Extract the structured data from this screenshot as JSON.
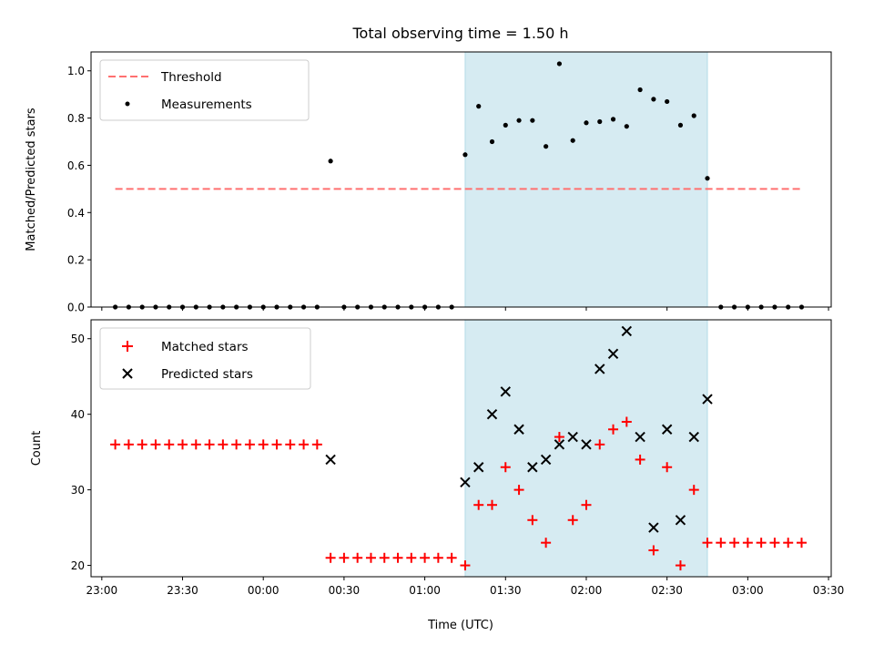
{
  "chart_data": {
    "title": "Total observing time = 1.50 h",
    "x_axis": {
      "label": "Time (UTC)",
      "ticks": [
        "23:00",
        "23:30",
        "00:00",
        "00:30",
        "01:00",
        "01:30",
        "02:00",
        "02:30",
        "03:00",
        "03:30"
      ],
      "range": [
        "22:56",
        "03:31"
      ]
    },
    "highlight_span": {
      "start": "01:15",
      "end": "02:45"
    },
    "x": [
      "23:05",
      "23:10",
      "23:15",
      "23:20",
      "23:25",
      "23:30",
      "23:35",
      "23:40",
      "23:45",
      "23:50",
      "23:55",
      "00:00",
      "00:05",
      "00:10",
      "00:15",
      "00:20",
      "00:25",
      "00:30",
      "00:35",
      "00:40",
      "00:45",
      "00:50",
      "00:55",
      "01:00",
      "01:05",
      "01:10",
      "01:15",
      "01:20",
      "01:25",
      "01:30",
      "01:35",
      "01:40",
      "01:45",
      "01:50",
      "01:55",
      "02:00",
      "02:05",
      "02:10",
      "02:15",
      "02:20",
      "02:25",
      "02:30",
      "02:35",
      "02:40",
      "02:45",
      "02:50",
      "02:55",
      "03:00",
      "03:05",
      "03:10",
      "03:15",
      "03:20"
    ],
    "panels": [
      {
        "type": "scatter",
        "ylabel": "Matched/Predicted stars",
        "ylim": [
          0,
          1.08
        ],
        "yticks": [
          "0.0",
          "0.2",
          "0.4",
          "0.6",
          "0.8",
          "1.0"
        ],
        "legend_position": "upper-left",
        "threshold": {
          "name": "Threshold",
          "value": 0.5,
          "x_start": "23:05",
          "x_end": "03:20",
          "color": "#ff7070",
          "style": "dashed"
        },
        "series": [
          {
            "name": "Measurements",
            "marker": "dot",
            "color": "#000000",
            "values": [
              0,
              0,
              0,
              0,
              0,
              0,
              0,
              0,
              0,
              0,
              0,
              0,
              0,
              0,
              0,
              0,
              0.618,
              0,
              0,
              0,
              0,
              0,
              0,
              0,
              0,
              0,
              0.645,
              0.85,
              0.7,
              0.77,
              0.79,
              0.79,
              0.68,
              1.03,
              0.705,
              0.78,
              0.785,
              0.795,
              0.765,
              0.92,
              0.88,
              0.87,
              0.77,
              0.81,
              0.545,
              0,
              0,
              0,
              0,
              0,
              0,
              0
            ]
          }
        ]
      },
      {
        "type": "scatter",
        "ylabel": "Count",
        "ylim": [
          18.5,
          52.5
        ],
        "yticks": [
          "20",
          "30",
          "40",
          "50"
        ],
        "legend_position": "upper-left",
        "series": [
          {
            "name": "Matched stars",
            "marker": "plus",
            "color": "#ff0000",
            "values": [
              36,
              36,
              36,
              36,
              36,
              36,
              36,
              36,
              36,
              36,
              36,
              36,
              36,
              36,
              36,
              36,
              21,
              21,
              21,
              21,
              21,
              21,
              21,
              21,
              21,
              21,
              20,
              28,
              28,
              33,
              30,
              26,
              23,
              37,
              26,
              28,
              36,
              38,
              39,
              34,
              22,
              33,
              20,
              30,
              23,
              23,
              23,
              23,
              23,
              23,
              23,
              23
            ]
          },
          {
            "name": "Predicted stars",
            "marker": "x",
            "color": "#000000",
            "values": [
              null,
              null,
              null,
              null,
              null,
              null,
              null,
              null,
              null,
              null,
              null,
              null,
              null,
              null,
              null,
              null,
              34,
              null,
              null,
              null,
              null,
              null,
              null,
              null,
              null,
              null,
              31,
              33,
              40,
              43,
              38,
              33,
              34,
              36,
              37,
              36,
              46,
              48,
              51,
              37,
              25,
              38,
              26,
              37,
              42,
              null,
              null,
              null,
              null,
              null,
              null,
              null
            ]
          }
        ]
      }
    ],
    "colors": {
      "span": "#add8e6",
      "threshold": "#ff7070"
    }
  }
}
